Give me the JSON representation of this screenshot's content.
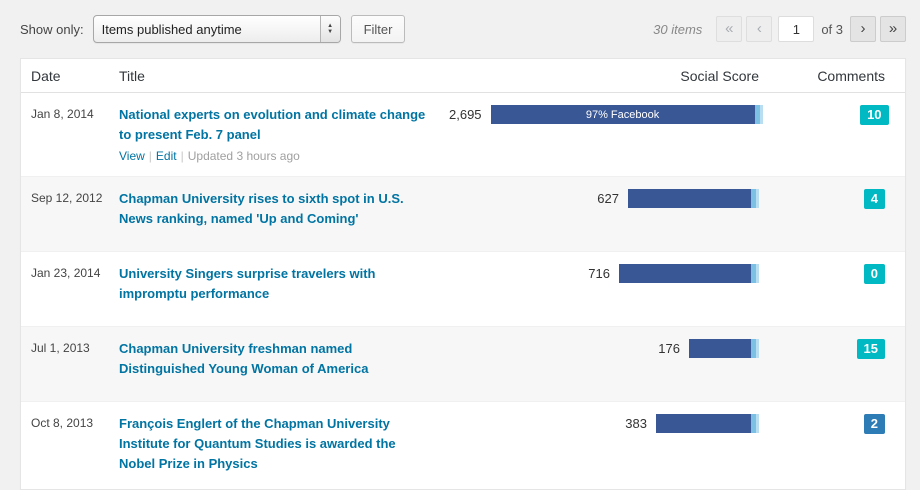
{
  "toolbar": {
    "show_only_label": "Show only:",
    "filter_select_value": "Items published anytime",
    "filter_button_label": "Filter"
  },
  "pagination": {
    "items_count": "30 items",
    "first_label": "«",
    "prev_label": "‹",
    "current_page": "1",
    "total_pages_label": "of 3",
    "next_label": "›",
    "last_label": "»"
  },
  "ui": {
    "separator": "|"
  },
  "colors": {
    "bar_main": "#3a5795",
    "bar_tip": "#7cc0e4",
    "bar_tip2": "#b9def2",
    "badge_teal": "#00b9c2",
    "badge_blue": "#2d7cb5"
  },
  "table": {
    "headers": {
      "date": "Date",
      "title": "Title",
      "score": "Social Score",
      "comments": "Comments"
    },
    "rows": [
      {
        "date": "Jan 8, 2014",
        "title": "National experts on evolution and climate change to present Feb. 7 panel",
        "view_label": "View",
        "edit_label": "Edit",
        "updated_text": "Updated 3 hours ago",
        "score_display": "2,695",
        "score_value": 2695,
        "bar_label": "97% Facebook",
        "comments": "10",
        "comment_color": "#00b9c2"
      },
      {
        "date": "Sep 12, 2012",
        "title": "Chapman University rises to sixth spot in U.S. News ranking, named 'Up and Coming'",
        "score_display": "627",
        "score_value": 627,
        "bar_label": "",
        "comments": "4",
        "comment_color": "#00b9c2"
      },
      {
        "date": "Jan 23, 2014",
        "title": "University Singers surprise travelers with impromptu performance",
        "score_display": "716",
        "score_value": 716,
        "bar_label": "",
        "comments": "0",
        "comment_color": "#00b9c2"
      },
      {
        "date": "Jul 1, 2013",
        "title": "Chapman University freshman named Distinguished Young Woman of America",
        "score_display": "176",
        "score_value": 176,
        "bar_label": "",
        "comments": "15",
        "comment_color": "#00b9c2"
      },
      {
        "date": "Oct 8, 2013",
        "title": "François Englert of the Chapman University Institute for Quantum Studies is awarded the Nobel Prize in Physics",
        "score_display": "383",
        "score_value": 383,
        "bar_label": "",
        "comments": "2",
        "comment_color": "#2d7cb5"
      }
    ]
  }
}
